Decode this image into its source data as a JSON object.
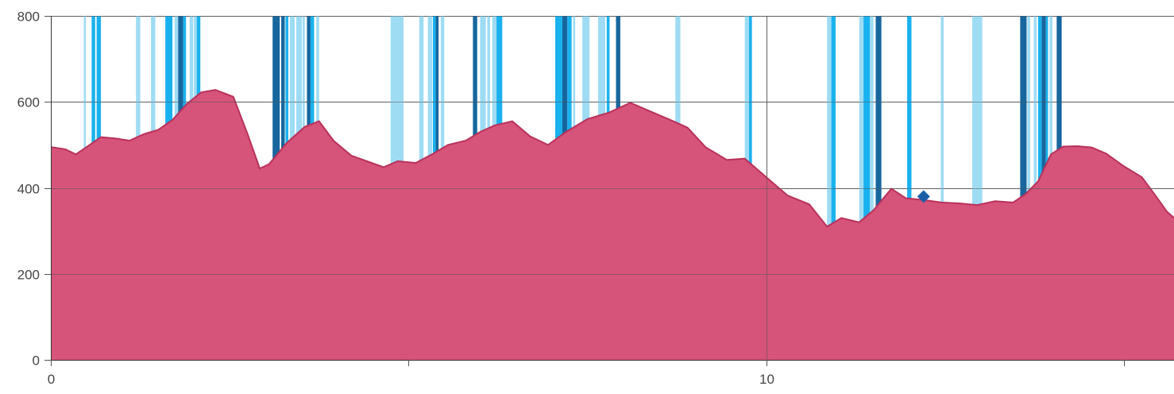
{
  "chart_data": {
    "type": "area",
    "title": "",
    "xlabel": "",
    "ylabel": "",
    "xlim": [
      0,
      15.7
    ],
    "ylim": [
      0,
      800
    ],
    "x_ticks": [
      {
        "value": 0,
        "label": "0"
      },
      {
        "value": 5,
        "label": ""
      },
      {
        "value": 10,
        "label": "10"
      },
      {
        "value": 15,
        "label": ""
      }
    ],
    "y_ticks": [
      {
        "value": 0,
        "label": "0"
      },
      {
        "value": 200,
        "label": "200"
      },
      {
        "value": 400,
        "label": "400"
      },
      {
        "value": 600,
        "label": "600"
      },
      {
        "value": 800,
        "label": "800"
      }
    ],
    "grid": true,
    "colors": {
      "fill": "#d6537a",
      "line": "#b8325b",
      "light": "#9edcf3",
      "medium": "#1ab2ee",
      "dark": "#17679e",
      "marker": "#1a5fa8",
      "grid": "#555555"
    },
    "series": [
      {
        "points": [
          [
            0,
            495
          ],
          [
            0.2,
            490
          ],
          [
            0.35,
            478
          ],
          [
            0.5,
            495
          ],
          [
            0.7,
            518
          ],
          [
            0.9,
            515
          ],
          [
            1.1,
            510
          ],
          [
            1.3,
            525
          ],
          [
            1.5,
            535
          ],
          [
            1.7,
            558
          ],
          [
            1.9,
            595
          ],
          [
            2.1,
            622
          ],
          [
            2.3,
            628
          ],
          [
            2.55,
            612
          ],
          [
            2.75,
            525
          ],
          [
            2.92,
            445
          ],
          [
            3.05,
            455
          ],
          [
            3.3,
            505
          ],
          [
            3.55,
            542
          ],
          [
            3.75,
            555
          ],
          [
            3.95,
            510
          ],
          [
            4.2,
            475
          ],
          [
            4.45,
            460
          ],
          [
            4.65,
            448
          ],
          [
            4.85,
            462
          ],
          [
            5.1,
            458
          ],
          [
            5.35,
            480
          ],
          [
            5.55,
            500
          ],
          [
            5.8,
            510
          ],
          [
            6.0,
            530
          ],
          [
            6.2,
            545
          ],
          [
            6.45,
            555
          ],
          [
            6.7,
            520
          ],
          [
            6.95,
            500
          ],
          [
            7.2,
            530
          ],
          [
            7.5,
            560
          ],
          [
            7.8,
            575
          ],
          [
            8.1,
            598
          ],
          [
            8.35,
            580
          ],
          [
            8.7,
            555
          ],
          [
            8.9,
            540
          ],
          [
            9.15,
            495
          ],
          [
            9.45,
            465
          ],
          [
            9.7,
            468
          ],
          [
            10.0,
            425
          ],
          [
            10.3,
            382
          ],
          [
            10.6,
            362
          ],
          [
            10.85,
            310
          ],
          [
            11.05,
            330
          ],
          [
            11.3,
            320
          ],
          [
            11.5,
            348
          ],
          [
            11.75,
            398
          ],
          [
            11.95,
            376
          ],
          [
            12.2,
            372
          ],
          [
            12.45,
            366
          ],
          [
            12.7,
            364
          ],
          [
            12.95,
            360
          ],
          [
            13.2,
            369
          ],
          [
            13.45,
            366
          ],
          [
            13.62,
            385
          ],
          [
            13.8,
            415
          ],
          [
            13.98,
            478
          ],
          [
            14.15,
            496
          ],
          [
            14.35,
            497
          ],
          [
            14.55,
            494
          ],
          [
            14.75,
            480
          ],
          [
            15.0,
            450
          ],
          [
            15.25,
            425
          ],
          [
            15.45,
            380
          ],
          [
            15.6,
            345
          ],
          [
            15.7,
            330
          ]
        ]
      }
    ],
    "bands": [
      {
        "x": 0.46,
        "width": 0.03,
        "type": "light"
      },
      {
        "x": 0.57,
        "width": 0.05,
        "type": "medium"
      },
      {
        "x": 0.64,
        "width": 0.06,
        "type": "medium"
      },
      {
        "x": 1.19,
        "width": 0.06,
        "type": "light"
      },
      {
        "x": 1.4,
        "width": 0.06,
        "type": "light"
      },
      {
        "x": 1.6,
        "width": 0.1,
        "type": "medium"
      },
      {
        "x": 1.73,
        "width": 0.05,
        "type": "light"
      },
      {
        "x": 1.78,
        "width": 0.07,
        "type": "dark"
      },
      {
        "x": 1.85,
        "width": 0.04,
        "type": "medium"
      },
      {
        "x": 1.94,
        "width": 0.05,
        "type": "light"
      },
      {
        "x": 2.0,
        "width": 0.04,
        "type": "light"
      },
      {
        "x": 2.04,
        "width": 0.05,
        "type": "medium"
      },
      {
        "x": 3.1,
        "width": 0.1,
        "type": "dark"
      },
      {
        "x": 3.22,
        "width": 0.05,
        "type": "dark"
      },
      {
        "x": 3.28,
        "width": 0.04,
        "type": "medium"
      },
      {
        "x": 3.34,
        "width": 0.07,
        "type": "light"
      },
      {
        "x": 3.43,
        "width": 0.08,
        "type": "light"
      },
      {
        "x": 3.52,
        "width": 0.03,
        "type": "light"
      },
      {
        "x": 3.58,
        "width": 0.05,
        "type": "dark"
      },
      {
        "x": 3.63,
        "width": 0.05,
        "type": "medium"
      },
      {
        "x": 3.71,
        "width": 0.04,
        "type": "light"
      },
      {
        "x": 4.75,
        "width": 0.18,
        "type": "light"
      },
      {
        "x": 5.15,
        "width": 0.06,
        "type": "light"
      },
      {
        "x": 5.27,
        "width": 0.06,
        "type": "light"
      },
      {
        "x": 5.34,
        "width": 0.04,
        "type": "medium"
      },
      {
        "x": 5.38,
        "width": 0.04,
        "type": "dark"
      },
      {
        "x": 5.45,
        "width": 0.05,
        "type": "light"
      },
      {
        "x": 5.9,
        "width": 0.06,
        "type": "dark"
      },
      {
        "x": 6.0,
        "width": 0.08,
        "type": "light"
      },
      {
        "x": 6.1,
        "width": 0.04,
        "type": "light"
      },
      {
        "x": 6.17,
        "width": 0.06,
        "type": "light"
      },
      {
        "x": 6.23,
        "width": 0.08,
        "type": "medium"
      },
      {
        "x": 7.05,
        "width": 0.1,
        "type": "medium"
      },
      {
        "x": 7.15,
        "width": 0.07,
        "type": "dark"
      },
      {
        "x": 7.22,
        "width": 0.06,
        "type": "medium"
      },
      {
        "x": 7.3,
        "width": 0.03,
        "type": "light"
      },
      {
        "x": 7.43,
        "width": 0.1,
        "type": "light"
      },
      {
        "x": 7.65,
        "width": 0.1,
        "type": "light"
      },
      {
        "x": 7.77,
        "width": 0.04,
        "type": "medium"
      },
      {
        "x": 7.9,
        "width": 0.06,
        "type": "dark"
      },
      {
        "x": 8.73,
        "width": 0.07,
        "type": "light"
      },
      {
        "x": 9.7,
        "width": 0.06,
        "type": "light"
      },
      {
        "x": 9.76,
        "width": 0.04,
        "type": "medium"
      },
      {
        "x": 10.85,
        "width": 0.06,
        "type": "light"
      },
      {
        "x": 10.91,
        "width": 0.06,
        "type": "medium"
      },
      {
        "x": 11.3,
        "width": 0.06,
        "type": "light"
      },
      {
        "x": 11.36,
        "width": 0.09,
        "type": "medium"
      },
      {
        "x": 11.45,
        "width": 0.05,
        "type": "light"
      },
      {
        "x": 11.53,
        "width": 0.08,
        "type": "dark"
      },
      {
        "x": 11.97,
        "width": 0.06,
        "type": "medium"
      },
      {
        "x": 12.44,
        "width": 0.04,
        "type": "light"
      },
      {
        "x": 12.88,
        "width": 0.14,
        "type": "light"
      },
      {
        "x": 13.55,
        "width": 0.09,
        "type": "dark"
      },
      {
        "x": 13.65,
        "width": 0.04,
        "type": "light"
      },
      {
        "x": 13.74,
        "width": 0.04,
        "type": "light"
      },
      {
        "x": 13.8,
        "width": 0.05,
        "type": "medium"
      },
      {
        "x": 13.85,
        "width": 0.06,
        "type": "dark"
      },
      {
        "x": 13.91,
        "width": 0.03,
        "type": "medium"
      },
      {
        "x": 13.96,
        "width": 0.04,
        "type": "light"
      },
      {
        "x": 14.06,
        "width": 0.07,
        "type": "dark"
      }
    ],
    "markers": [
      {
        "x": 12.2,
        "y": 380,
        "shape": "diamond"
      }
    ]
  }
}
